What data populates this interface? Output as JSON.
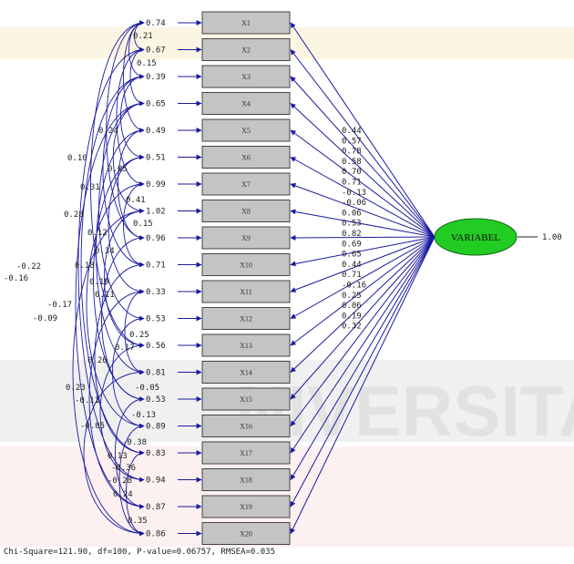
{
  "watermark": {
    "lines": [
      "NIVERSITAS"
    ],
    "color_light": "#f2f2f2",
    "color_red": "#fce6e6"
  },
  "latent": {
    "label": "VARIABEL",
    "variance": "1.00",
    "fill": "#22cc22"
  },
  "indicators": [
    {
      "label": "X1",
      "error": "0.74",
      "loading": "0.44"
    },
    {
      "label": "X2",
      "error": "0.67",
      "loading": "0.57"
    },
    {
      "label": "X3",
      "error": "0.39",
      "loading": "0.78"
    },
    {
      "label": "X4",
      "error": "0.65",
      "loading": "0.58"
    },
    {
      "label": "X5",
      "error": "0.49",
      "loading": "0.70"
    },
    {
      "label": "X6",
      "error": "0.51",
      "loading": "0.71"
    },
    {
      "label": "X7",
      "error": "0.99",
      "loading": "-0.13"
    },
    {
      "label": "X8",
      "error": "1.02",
      "loading": "-0.06"
    },
    {
      "label": "X9",
      "error": "0.96",
      "loading": "0.06"
    },
    {
      "label": "X10",
      "error": "0.71",
      "loading": "0.53"
    },
    {
      "label": "X11",
      "error": "0.33",
      "loading": "0.82"
    },
    {
      "label": "X12",
      "error": "0.53",
      "loading": "0.69"
    },
    {
      "label": "X13",
      "error": "0.56",
      "loading": "0.65"
    },
    {
      "label": "X14",
      "error": "0.81",
      "loading": "0.44"
    },
    {
      "label": "X15",
      "error": "0.53",
      "loading": "0.71"
    },
    {
      "label": "X16",
      "error": "0.89",
      "loading": "-0.16"
    },
    {
      "label": "X17",
      "error": "0.83",
      "loading": "0.25"
    },
    {
      "label": "X18",
      "error": "0.94",
      "loading": "0.06"
    },
    {
      "label": "X19",
      "error": "0.87",
      "loading": "0.19"
    },
    {
      "label": "X20",
      "error": "0.86",
      "loading": "0.32"
    }
  ],
  "covariance_labels": [
    "0.21",
    "0.15",
    "0.05",
    "0.41",
    "0.15",
    "-0.22",
    "-0.16",
    "-0.17",
    "-0.09",
    "0.25",
    "0.17",
    "0.26",
    "0.23",
    "-0.05",
    "-0.11",
    "-0.13",
    "-0.05",
    "-0.38",
    "0.13",
    "-0.36",
    "-0.28",
    "0.24",
    "0.35",
    "0.12",
    "0.34",
    "0.18",
    "0.19",
    "0.11",
    "0.28",
    "0.31",
    "0.10",
    "0.24"
  ],
  "fit_statistics": "Chi-Square=121.90, df=100, P-value=0.06757, RMSEA=0.035",
  "colors": {
    "path": "#1a1aa0",
    "box_fill": "#c4c4c4",
    "box_stroke": "#444444"
  }
}
